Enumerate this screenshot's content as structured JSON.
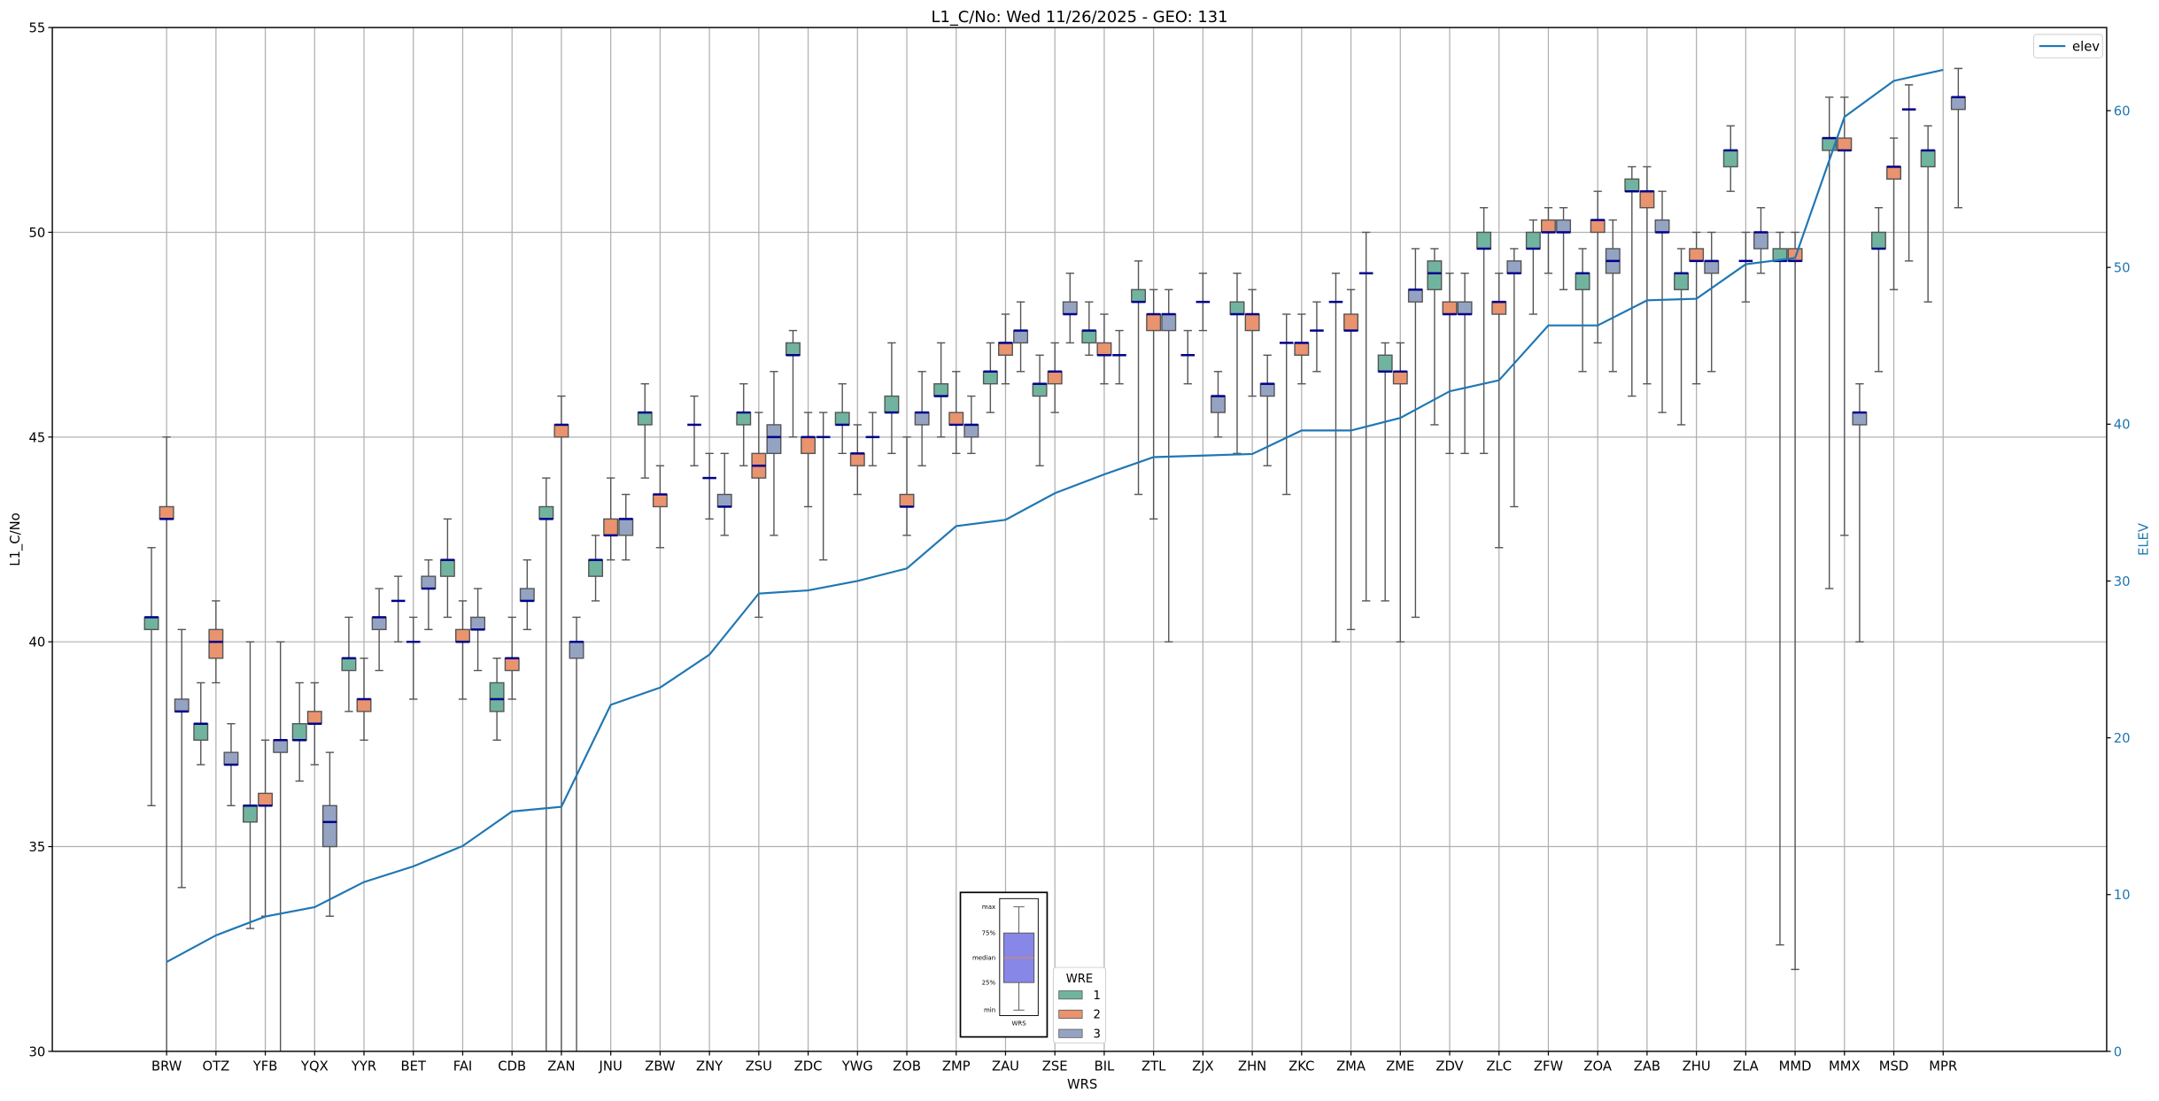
{
  "chart_data": {
    "type": "box",
    "title": "L1_C/No: Wed 11/26/2025 - GEO: 131",
    "xlabel": "WRS",
    "ylabel": "L1_C/No",
    "y2label": "ELEV",
    "ylim": [
      30,
      55
    ],
    "y2lim": [
      0,
      65.3
    ],
    "yticks": [
      30,
      35,
      40,
      45,
      50,
      55
    ],
    "y2ticks": [
      0,
      10,
      20,
      30,
      40,
      50,
      60
    ],
    "grid": true,
    "box_stat_order": [
      "min",
      "q1",
      "median",
      "q3",
      "max"
    ],
    "hue_legend": {
      "title": "WRE",
      "entries": [
        "1",
        "2",
        "3"
      ],
      "placement": "bottom-center"
    },
    "line_legend": {
      "entries": [
        "elev"
      ],
      "placement": "top-right"
    },
    "inset_key": {
      "labels": [
        "max",
        "75%",
        "median",
        "25%",
        "min"
      ],
      "xlabel": "WRS"
    },
    "colors": {
      "wre1": "#70b49f",
      "wre2": "#e9936f",
      "wre3": "#95a3c3",
      "median": "#00008b",
      "elev": "#1f77b4",
      "inset_box": "#8787e8",
      "inset_median": "#f28e2b"
    },
    "stations": [
      {
        "name": "BRW",
        "elev": 5.7,
        "wre": [
          [
            36.0,
            40.3,
            40.6,
            40.6,
            42.3
          ],
          [
            29,
            43.0,
            43.0,
            43.3,
            45.0
          ],
          [
            34.0,
            38.3,
            38.3,
            38.6,
            40.3
          ]
        ]
      },
      {
        "name": "OTZ",
        "elev": 7.4,
        "wre": [
          [
            37.0,
            37.6,
            38.0,
            38.0,
            39.0
          ],
          [
            39.0,
            39.6,
            40.0,
            40.3,
            41.0
          ],
          [
            36.0,
            37.0,
            37.0,
            37.3,
            38.0
          ]
        ]
      },
      {
        "name": "YFB",
        "elev": 8.6,
        "wre": [
          [
            33.0,
            35.6,
            36.0,
            36.0,
            40.0
          ],
          [
            33.3,
            36.0,
            36.0,
            36.3,
            37.6
          ],
          [
            29,
            37.3,
            37.6,
            37.6,
            40.0
          ]
        ]
      },
      {
        "name": "YQX",
        "elev": 9.2,
        "wre": [
          [
            36.6,
            37.6,
            37.6,
            38.0,
            39.0
          ],
          [
            37.0,
            38.0,
            38.0,
            38.3,
            39.0
          ],
          [
            33.3,
            35.0,
            35.6,
            36.0,
            37.3
          ]
        ]
      },
      {
        "name": "YYR",
        "elev": 10.8,
        "wre": [
          [
            38.3,
            39.3,
            39.6,
            39.6,
            40.6
          ],
          [
            37.6,
            38.3,
            38.6,
            38.6,
            39.6
          ],
          [
            39.3,
            40.3,
            40.6,
            40.6,
            41.3
          ]
        ]
      },
      {
        "name": "BET",
        "elev": 11.8,
        "wre": [
          [
            40.0,
            41.0,
            41.0,
            41.0,
            41.6
          ],
          [
            38.6,
            40.0,
            40.0,
            40.0,
            40.6
          ],
          [
            40.3,
            41.3,
            41.3,
            41.6,
            42.0
          ]
        ]
      },
      {
        "name": "FAI",
        "elev": 13.1,
        "wre": [
          [
            40.6,
            41.6,
            42.0,
            42.0,
            43.0
          ],
          [
            38.6,
            40.0,
            40.0,
            40.3,
            41.0
          ],
          [
            39.3,
            40.3,
            40.3,
            40.6,
            41.3
          ]
        ]
      },
      {
        "name": "CDB",
        "elev": 15.3,
        "wre": [
          [
            37.6,
            38.3,
            38.6,
            39.0,
            39.6
          ],
          [
            38.6,
            39.3,
            39.6,
            39.6,
            40.6
          ],
          [
            40.3,
            41.0,
            41.0,
            41.3,
            42.0
          ]
        ]
      },
      {
        "name": "ZAN",
        "elev": 15.6,
        "wre": [
          [
            29,
            43.0,
            43.0,
            43.3,
            44.0
          ],
          [
            29,
            45.0,
            45.3,
            45.3,
            46.0
          ],
          [
            29,
            39.6,
            40.0,
            40.0,
            40.6
          ]
        ]
      },
      {
        "name": "JNU",
        "elev": 22.1,
        "wre": [
          [
            41.0,
            41.6,
            42.0,
            42.0,
            42.6
          ],
          [
            42.0,
            42.6,
            42.6,
            43.0,
            44.0
          ],
          [
            42.0,
            42.6,
            43.0,
            43.0,
            43.6
          ]
        ]
      },
      {
        "name": "ZBW",
        "elev": 23.2,
        "wre": [
          [
            44.0,
            45.3,
            45.6,
            45.6,
            46.3
          ],
          [
            42.3,
            43.3,
            43.6,
            43.6,
            44.3
          ],
          null
        ]
      },
      {
        "name": "ZNY",
        "elev": 25.3,
        "wre": [
          [
            44.3,
            45.3,
            45.3,
            45.3,
            46.0
          ],
          [
            43.0,
            44.0,
            44.0,
            44.0,
            44.6
          ],
          [
            42.6,
            43.3,
            43.3,
            43.6,
            44.6
          ]
        ]
      },
      {
        "name": "ZSU",
        "elev": 29.2,
        "wre": [
          [
            44.3,
            45.3,
            45.6,
            45.6,
            46.3
          ],
          [
            40.6,
            44.0,
            44.3,
            44.6,
            45.6
          ],
          [
            42.6,
            44.6,
            45.0,
            45.3,
            46.6
          ]
        ]
      },
      {
        "name": "ZDC",
        "elev": 29.4,
        "wre": [
          [
            45.0,
            47.0,
            47.0,
            47.3,
            47.6
          ],
          [
            43.3,
            44.6,
            45.0,
            45.0,
            45.6
          ],
          [
            42.0,
            45.0,
            45.0,
            45.0,
            45.6
          ]
        ]
      },
      {
        "name": "YWG",
        "elev": 30.0,
        "wre": [
          [
            44.6,
            45.3,
            45.3,
            45.6,
            46.3
          ],
          [
            43.6,
            44.3,
            44.6,
            44.6,
            45.3
          ],
          [
            44.3,
            45.0,
            45.0,
            45.0,
            45.6
          ]
        ]
      },
      {
        "name": "ZOB",
        "elev": 30.8,
        "wre": [
          [
            44.6,
            45.6,
            45.6,
            46.0,
            47.3
          ],
          [
            42.6,
            43.3,
            43.3,
            43.6,
            45.0
          ],
          [
            44.3,
            45.3,
            45.6,
            45.6,
            46.6
          ]
        ]
      },
      {
        "name": "ZMP",
        "elev": 33.5,
        "wre": [
          [
            45.0,
            46.0,
            46.0,
            46.3,
            47.3
          ],
          [
            44.6,
            45.3,
            45.3,
            45.6,
            46.6
          ],
          [
            44.6,
            45.0,
            45.3,
            45.3,
            46.0
          ]
        ]
      },
      {
        "name": "ZAU",
        "elev": 33.9,
        "wre": [
          [
            45.6,
            46.3,
            46.6,
            46.6,
            47.3
          ],
          [
            46.3,
            47.0,
            47.3,
            47.3,
            48.0
          ],
          [
            46.6,
            47.3,
            47.6,
            47.6,
            48.3
          ]
        ]
      },
      {
        "name": "ZSE",
        "elev": 35.6,
        "wre": [
          [
            44.3,
            46.0,
            46.3,
            46.3,
            47.0
          ],
          [
            45.6,
            46.3,
            46.6,
            46.6,
            47.3
          ],
          [
            47.3,
            48.0,
            48.0,
            48.3,
            49.0
          ]
        ]
      },
      {
        "name": "BIL",
        "elev": 36.8,
        "wre": [
          [
            47.0,
            47.3,
            47.6,
            47.6,
            48.3
          ],
          [
            46.3,
            47.0,
            47.0,
            47.3,
            48.0
          ],
          [
            46.3,
            47.0,
            47.0,
            47.0,
            47.6
          ]
        ]
      },
      {
        "name": "ZTL",
        "elev": 37.9,
        "wre": [
          [
            43.6,
            48.3,
            48.3,
            48.6,
            49.3
          ],
          [
            43.0,
            47.6,
            48.0,
            48.0,
            48.6
          ],
          [
            40.0,
            47.6,
            48.0,
            48.0,
            48.6
          ]
        ]
      },
      {
        "name": "ZJX",
        "elev": 38.0,
        "wre": [
          [
            46.3,
            47.0,
            47.0,
            47.0,
            47.6
          ],
          [
            47.6,
            48.3,
            48.3,
            48.3,
            49.0
          ],
          [
            45.0,
            45.6,
            46.0,
            46.0,
            46.6
          ]
        ]
      },
      {
        "name": "ZHN",
        "elev": 38.1,
        "wre": [
          [
            44.6,
            48.0,
            48.0,
            48.3,
            49.0
          ],
          [
            46.0,
            47.6,
            48.0,
            48.0,
            48.6
          ],
          [
            44.3,
            46.0,
            46.3,
            46.3,
            47.0
          ]
        ]
      },
      {
        "name": "ZKC",
        "elev": 39.6,
        "wre": [
          [
            43.6,
            47.3,
            47.3,
            47.3,
            48.0
          ],
          [
            46.3,
            47.0,
            47.3,
            47.3,
            48.0
          ],
          [
            46.6,
            47.6,
            47.6,
            47.6,
            48.3
          ]
        ]
      },
      {
        "name": "ZMA",
        "elev": 39.6,
        "wre": [
          [
            40.0,
            48.3,
            48.3,
            48.3,
            49.0
          ],
          [
            40.3,
            47.6,
            47.6,
            48.0,
            48.6
          ],
          [
            41.0,
            49.0,
            49.0,
            49.0,
            50.0
          ]
        ]
      },
      {
        "name": "ZME",
        "elev": 40.4,
        "wre": [
          [
            41.0,
            46.6,
            46.6,
            47.0,
            47.3
          ],
          [
            40.0,
            46.3,
            46.6,
            46.6,
            47.3
          ],
          [
            40.6,
            48.3,
            48.6,
            48.6,
            49.6
          ]
        ]
      },
      {
        "name": "ZDV",
        "elev": 42.1,
        "wre": [
          [
            45.3,
            48.6,
            49.0,
            49.3,
            49.6
          ],
          [
            44.6,
            48.0,
            48.0,
            48.3,
            49.0
          ],
          [
            44.6,
            48.0,
            48.0,
            48.3,
            49.0
          ]
        ]
      },
      {
        "name": "ZLC",
        "elev": 42.8,
        "wre": [
          [
            44.6,
            49.6,
            49.6,
            50.0,
            50.6
          ],
          [
            42.3,
            48.0,
            48.3,
            48.3,
            49.0
          ],
          [
            43.3,
            49.0,
            49.0,
            49.3,
            49.6
          ]
        ]
      },
      {
        "name": "ZFW",
        "elev": 46.3,
        "wre": [
          [
            48.0,
            49.6,
            49.6,
            50.0,
            50.3
          ],
          [
            49.0,
            50.0,
            50.0,
            50.3,
            50.6
          ],
          [
            48.6,
            50.0,
            50.0,
            50.3,
            50.6
          ]
        ]
      },
      {
        "name": "ZOA",
        "elev": 46.3,
        "wre": [
          [
            46.6,
            48.6,
            49.0,
            49.0,
            49.6
          ],
          [
            47.3,
            50.0,
            50.3,
            50.3,
            51.0
          ],
          [
            46.6,
            49.0,
            49.3,
            49.6,
            50.3
          ]
        ]
      },
      {
        "name": "ZAB",
        "elev": 47.9,
        "wre": [
          [
            46.0,
            51.0,
            51.0,
            51.3,
            51.6
          ],
          [
            46.3,
            50.6,
            51.0,
            51.0,
            51.6
          ],
          [
            45.6,
            50.0,
            50.0,
            50.3,
            51.0
          ]
        ]
      },
      {
        "name": "ZHU",
        "elev": 48.0,
        "wre": [
          [
            45.3,
            48.6,
            49.0,
            49.0,
            49.6
          ],
          [
            46.3,
            49.3,
            49.3,
            49.6,
            50.0
          ],
          [
            46.6,
            49.0,
            49.3,
            49.3,
            50.0
          ]
        ]
      },
      {
        "name": "ZLA",
        "elev": 50.2,
        "wre": [
          [
            51.0,
            51.6,
            52.0,
            52.0,
            52.6
          ],
          [
            48.3,
            49.3,
            49.3,
            49.3,
            50.0
          ],
          [
            49.0,
            49.6,
            50.0,
            50.0,
            50.6
          ]
        ]
      },
      {
        "name": "MMD",
        "elev": 50.6,
        "wre": [
          [
            32.6,
            49.3,
            49.3,
            49.6,
            50.0
          ],
          [
            32.0,
            49.3,
            49.3,
            49.6,
            50.0
          ],
          null
        ]
      },
      {
        "name": "MMX",
        "elev": 59.6,
        "wre": [
          [
            41.3,
            52.0,
            52.3,
            52.3,
            53.3
          ],
          [
            42.6,
            52.0,
            52.0,
            52.3,
            53.3
          ],
          [
            40.0,
            45.3,
            45.6,
            45.6,
            46.3
          ]
        ]
      },
      {
        "name": "MSD",
        "elev": 61.9,
        "wre": [
          [
            46.6,
            49.6,
            49.6,
            50.0,
            50.6
          ],
          [
            48.6,
            51.3,
            51.6,
            51.6,
            52.3
          ],
          [
            49.3,
            53.0,
            53.0,
            53.0,
            53.6
          ]
        ]
      },
      {
        "name": "MPR",
        "elev": 62.6,
        "wre": [
          [
            48.3,
            51.6,
            52.0,
            52.0,
            52.6
          ],
          null,
          [
            50.6,
            53.0,
            53.3,
            53.3,
            54.0
          ]
        ]
      }
    ]
  }
}
